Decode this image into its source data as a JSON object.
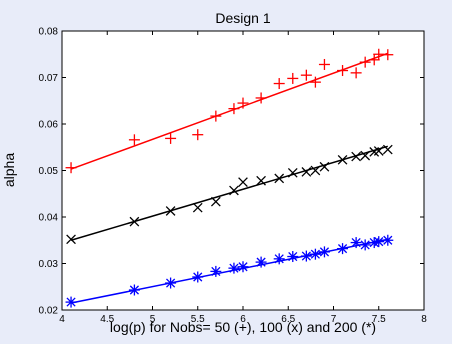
{
  "chart_data": {
    "type": "scatter",
    "title": "Design 1",
    "xlabel": "log(p) for Nobs= 50 (+), 100 (x) and 200 (*)",
    "ylabel": "alpha",
    "xlim": [
      4,
      8
    ],
    "ylim": [
      0.02,
      0.08
    ],
    "x_ticks": [
      4,
      4.5,
      5,
      5.5,
      6,
      6.5,
      7,
      7.5,
      8
    ],
    "x_tick_labels": [
      "4",
      "4.5",
      "5",
      "5.5",
      "6",
      "6.5",
      "7",
      "7.5",
      "8"
    ],
    "y_ticks": [
      0.02,
      0.03,
      0.04,
      0.05,
      0.06,
      0.07,
      0.08
    ],
    "y_tick_labels": [
      "0.02",
      "0.03",
      "0.04",
      "0.05",
      "0.06",
      "0.07",
      "0.08"
    ],
    "grid": false,
    "legend": "none",
    "series": [
      {
        "marker": "plus",
        "color": "#ff0000",
        "x": [
          4.1,
          4.8,
          5.2,
          5.5,
          5.7,
          5.9,
          6.0,
          6.2,
          6.4,
          6.55,
          6.7,
          6.8,
          6.9,
          7.1,
          7.25,
          7.35,
          7.45,
          7.5,
          7.6
        ],
        "y": [
          0.0506,
          0.0566,
          0.0569,
          0.0577,
          0.0617,
          0.0633,
          0.0645,
          0.0656,
          0.0687,
          0.0698,
          0.0705,
          0.069,
          0.0728,
          0.0715,
          0.071,
          0.0733,
          0.0738,
          0.075,
          0.0749
        ],
        "fit": [
          [
            4.1,
            0.0503
          ],
          [
            7.6,
            0.0752
          ]
        ]
      },
      {
        "marker": "x",
        "color": "#000000",
        "x": [
          4.1,
          4.8,
          5.2,
          5.5,
          5.7,
          5.9,
          6.0,
          6.2,
          6.4,
          6.55,
          6.7,
          6.8,
          6.9,
          7.1,
          7.25,
          7.35,
          7.45,
          7.5,
          7.6
        ],
        "y": [
          0.0352,
          0.039,
          0.0413,
          0.042,
          0.0433,
          0.0457,
          0.0475,
          0.0478,
          0.0483,
          0.0495,
          0.0497,
          0.05,
          0.0508,
          0.0523,
          0.053,
          0.0532,
          0.054,
          0.0542,
          0.0545
        ],
        "fit": [
          [
            4.1,
            0.035
          ],
          [
            7.6,
            0.0552
          ]
        ]
      },
      {
        "marker": "asterisk",
        "color": "#0000ff",
        "x": [
          4.1,
          4.8,
          5.2,
          5.5,
          5.7,
          5.9,
          6.0,
          6.2,
          6.4,
          6.55,
          6.7,
          6.8,
          6.9,
          7.1,
          7.25,
          7.35,
          7.45,
          7.5,
          7.6
        ],
        "y": [
          0.0217,
          0.0243,
          0.0258,
          0.0271,
          0.0283,
          0.029,
          0.0293,
          0.0303,
          0.031,
          0.0315,
          0.0316,
          0.032,
          0.0325,
          0.0332,
          0.0345,
          0.034,
          0.0345,
          0.0347,
          0.035
        ],
        "fit": [
          [
            4.1,
            0.0215
          ],
          [
            7.6,
            0.0352
          ]
        ]
      }
    ]
  }
}
